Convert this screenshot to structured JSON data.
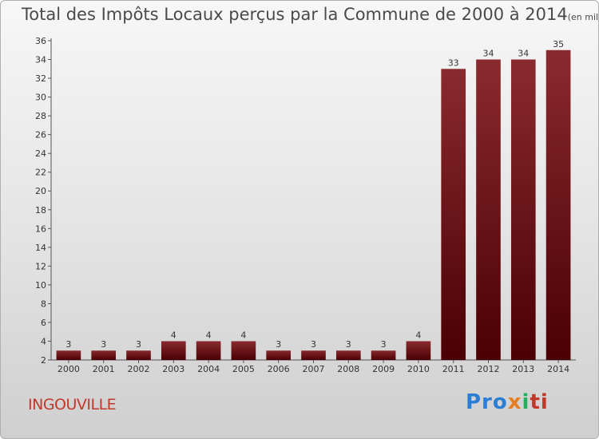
{
  "title": "Total des Impôts Locaux perçus par la Commune de 2000 à 2014",
  "unit_label": "(en milliers d'€)",
  "commune": "INGOUVILLE",
  "logo": {
    "part1": "Pro",
    "part2": "x",
    "part3": "i",
    "part4": "ti"
  },
  "colors": {
    "bar": "#7a1e22",
    "bar_dark": "#4a0004",
    "commune": "#c0392b"
  },
  "chart_data": {
    "type": "bar",
    "categories": [
      "2000",
      "2001",
      "2002",
      "2003",
      "2004",
      "2005",
      "2006",
      "2007",
      "2008",
      "2009",
      "2010",
      "2011",
      "2012",
      "2013",
      "2014"
    ],
    "values": [
      3,
      3,
      3,
      4,
      4,
      4,
      3,
      3,
      3,
      3,
      4,
      33,
      34,
      34,
      35
    ],
    "ylim": [
      2,
      36
    ],
    "yticks": [
      2,
      4,
      6,
      8,
      10,
      12,
      14,
      16,
      18,
      20,
      22,
      24,
      26,
      28,
      30,
      32,
      34,
      36
    ],
    "grid": false,
    "xlabel": "",
    "ylabel": ""
  }
}
